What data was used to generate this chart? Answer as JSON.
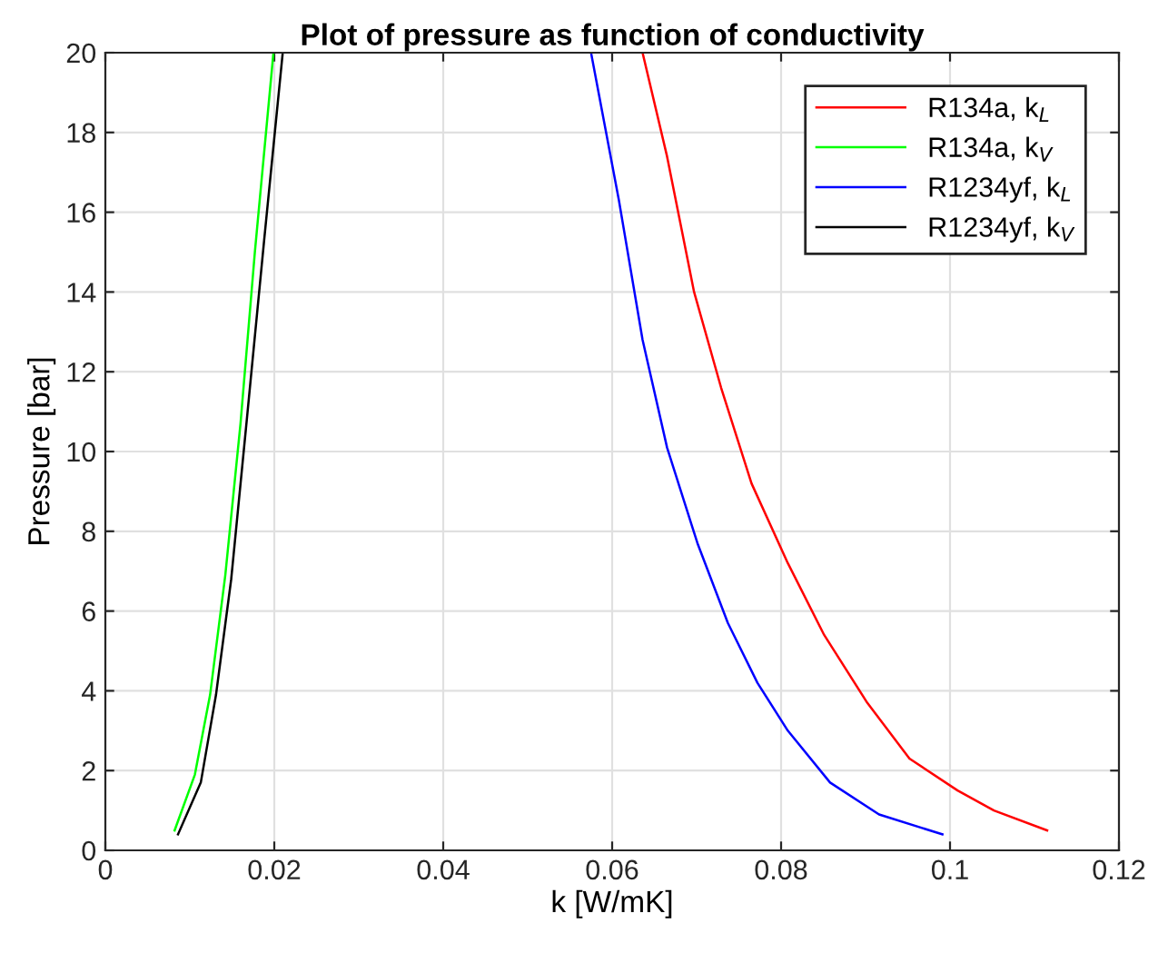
{
  "chart_data": {
    "type": "line",
    "title": "Plot of pressure as function of conductivity",
    "xlabel": "k [W/mK]",
    "ylabel": "Pressure [bar]",
    "xlim": [
      0,
      0.12
    ],
    "xticks": [
      0,
      0.02,
      0.04,
      0.06,
      0.08,
      0.1,
      0.12
    ],
    "ylim": [
      0,
      20
    ],
    "yticks": [
      0,
      2,
      4,
      6,
      8,
      10,
      12,
      14,
      16,
      18,
      20
    ],
    "grid": true,
    "legend": "top right",
    "marker": "none",
    "line_style": "solid",
    "series": [
      {
        "name": "R134a, k$_{L}$",
        "color": "#ff0000",
        "x": [
          0.0636,
          0.0665,
          0.0697,
          0.0729,
          0.0765,
          0.0808,
          0.0851,
          0.0902,
          0.0952,
          0.1009,
          0.1052,
          0.1115
        ],
        "values": [
          20,
          17.4,
          14.0,
          11.6,
          9.2,
          7.2,
          5.4,
          3.7,
          2.3,
          1.5,
          1.0,
          0.5
        ]
      },
      {
        "name": "R134a, k$_{V}$",
        "color": "#00ff00",
        "x": [
          0.0082,
          0.0106,
          0.0124,
          0.0142,
          0.016,
          0.0177,
          0.0199
        ],
        "values": [
          0.5,
          1.9,
          3.9,
          6.9,
          10.7,
          15.0,
          20
        ]
      },
      {
        "name": "R1234yf, k$_{L}$",
        "color": "#0000ff",
        "x": [
          0.0575,
          0.0608,
          0.0636,
          0.0665,
          0.0701,
          0.0737,
          0.0772,
          0.0808,
          0.0858,
          0.0916,
          0.0991
        ],
        "values": [
          20,
          16.3,
          12.8,
          10.1,
          7.7,
          5.7,
          4.2,
          3.0,
          1.7,
          0.9,
          0.4
        ]
      },
      {
        "name": "R1234yf, k$_{V}$",
        "color": "#000000",
        "x": [
          0.0086,
          0.0113,
          0.0131,
          0.0149,
          0.0167,
          0.0188,
          0.021
        ],
        "values": [
          0.4,
          1.7,
          3.9,
          6.8,
          10.7,
          15.3,
          20
        ]
      }
    ]
  }
}
